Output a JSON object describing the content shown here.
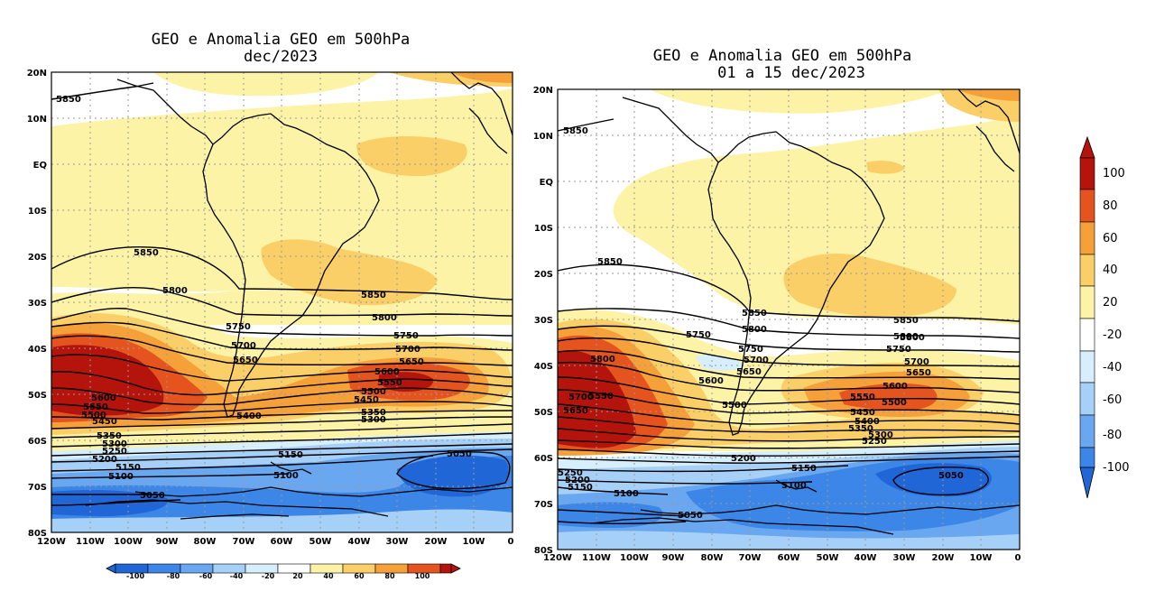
{
  "colors": {
    "neg100": "#2166d6",
    "neg80": "#3b86e6",
    "neg60": "#69a7f0",
    "neg40": "#a6d0f7",
    "neg20": "#d7eefc",
    "zero": "#ffffff",
    "pos20": "#fdf3a6",
    "pos40": "#fbcf67",
    "pos60": "#f6a03a",
    "pos80": "#e5541f",
    "pos100": "#b5140c",
    "contour": "#000000",
    "coast": "#000000",
    "grid": "#9a9a9a"
  },
  "maps": [
    {
      "title_line1": "GEO e Anomalia GEO em 500hPa",
      "title_line2": "dec/2023",
      "lat_ticks": [
        "20N",
        "10N",
        "EQ",
        "10S",
        "20S",
        "30S",
        "40S",
        "50S",
        "60S",
        "70S",
        "80S"
      ],
      "lon_ticks": [
        "120W",
        "110W",
        "100W",
        "90W",
        "80W",
        "70W",
        "60W",
        "50W",
        "40W",
        "30W",
        "20W",
        "10W",
        "0"
      ],
      "contour_labels": [
        "5850",
        "5850",
        "5800",
        "5850",
        "5800",
        "5750",
        "5700",
        "5650",
        "5750",
        "5700",
        "5650",
        "5600",
        "5550",
        "5500",
        "5450",
        "5600",
        "5550",
        "5500",
        "5450",
        "5400",
        "5350",
        "5300",
        "5350",
        "5300",
        "5250",
        "5200",
        "5150",
        "5100",
        "5150",
        "5100",
        "5050",
        "5050"
      ]
    },
    {
      "title_line1": "GEO e Anomalia GEO em 500hPa",
      "title_line2": "01 a 15 dec/2023",
      "lat_ticks": [
        "20N",
        "10N",
        "EQ",
        "10S",
        "20S",
        "30S",
        "40S",
        "50S",
        "60S",
        "70S",
        "80S"
      ],
      "lon_ticks": [
        "120W",
        "110W",
        "100W",
        "90W",
        "80W",
        "70W",
        "60W",
        "50W",
        "40W",
        "30W",
        "20W",
        "10W",
        "0"
      ],
      "contour_labels": [
        "5850",
        "5850",
        "5850",
        "5800",
        "5750",
        "5800",
        "5750",
        "5700",
        "5650",
        "5600",
        "5800",
        "5700",
        "5650",
        "5600",
        "5550",
        "5500",
        "5450",
        "5400",
        "5350",
        "5300",
        "5250",
        "5850",
        "5800",
        "5750",
        "5700",
        "5650",
        "5550",
        "5500",
        "5200",
        "5250",
        "5200",
        "5150",
        "5150",
        "5100",
        "5100",
        "5050",
        "5050"
      ]
    }
  ],
  "colorbar_vertical": {
    "labels": [
      "100",
      "80",
      "60",
      "40",
      "20",
      "-20",
      "-40",
      "-60",
      "-80",
      "-100"
    ]
  },
  "colorbar_horizontal": {
    "labels": [
      "-100",
      "-80",
      "-60",
      "-40",
      "-20",
      "20",
      "40",
      "60",
      "80",
      "100"
    ]
  }
}
